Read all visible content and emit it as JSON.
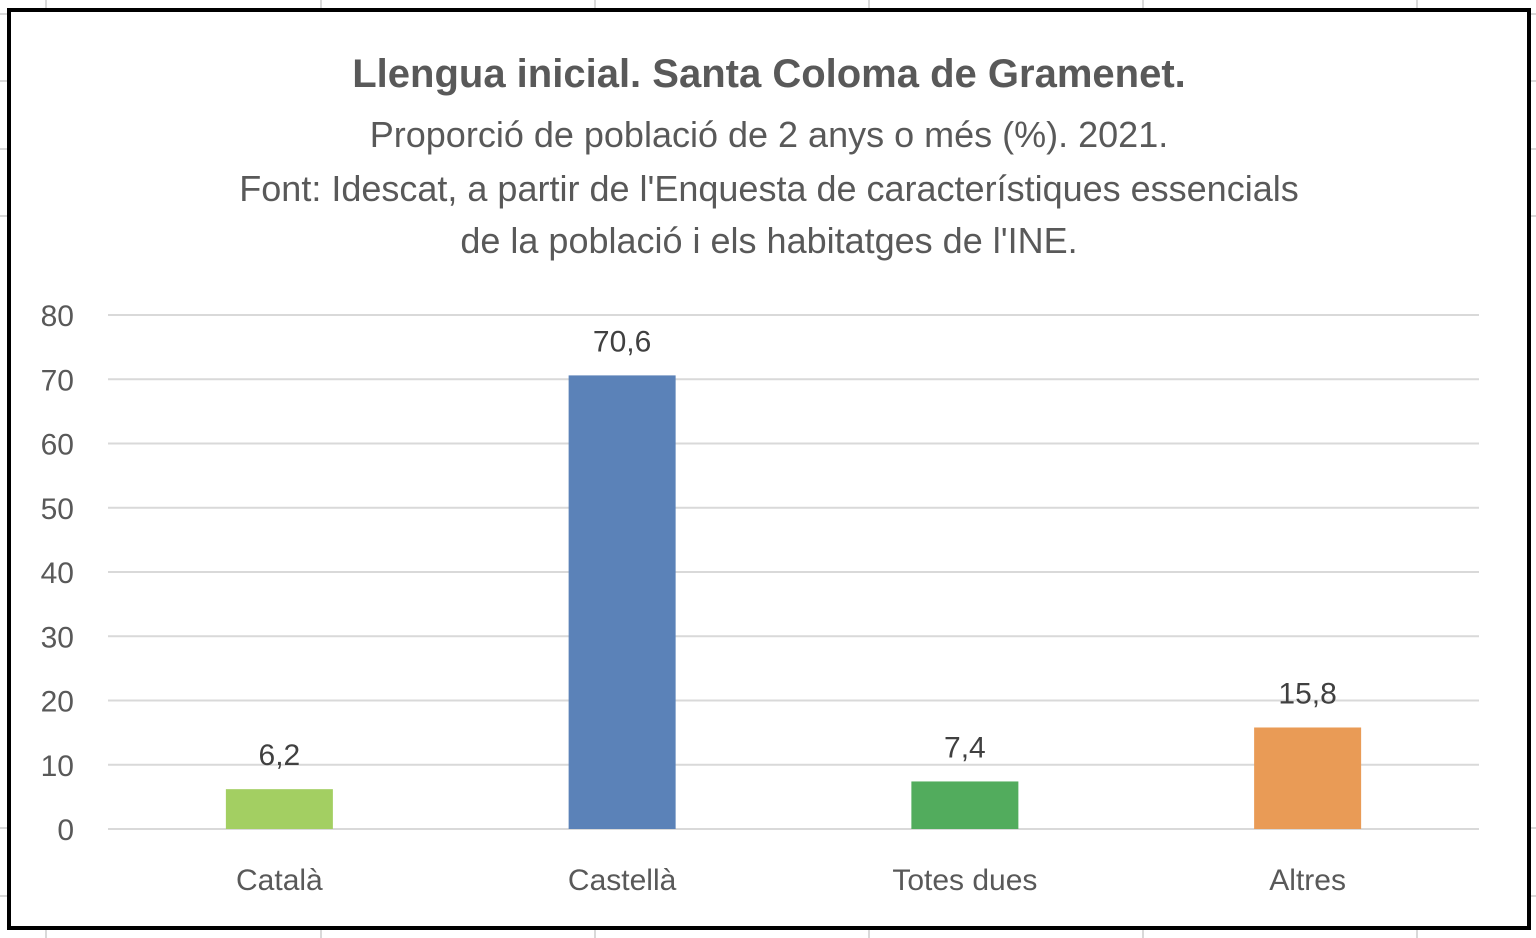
{
  "chart_data": {
    "type": "bar",
    "title": "Llengua inicial. Santa Coloma de Gramenet.",
    "subtitle_lines": [
      "Proporció de població de 2 anys o més (%).  2021.",
      "Font: Idescat, a partir de l'Enquesta de característiques essencials",
      "de la població i els habitatges de l'INE."
    ],
    "categories": [
      "Català",
      "Castellà",
      "Totes dues",
      "Altres"
    ],
    "values": [
      6.2,
      70.6,
      7.4,
      15.8
    ],
    "data_labels": [
      "6,2",
      "70,6",
      "7,4",
      "15,8"
    ],
    "colors": [
      "#a3cf62",
      "#5b82b8",
      "#52ac5d",
      "#e99b56"
    ],
    "xlabel": "",
    "ylabel": "",
    "ylim": [
      0,
      80
    ],
    "yticks": [
      0,
      10,
      20,
      30,
      40,
      50,
      60,
      70,
      80
    ],
    "grid": true,
    "legend": "none"
  }
}
